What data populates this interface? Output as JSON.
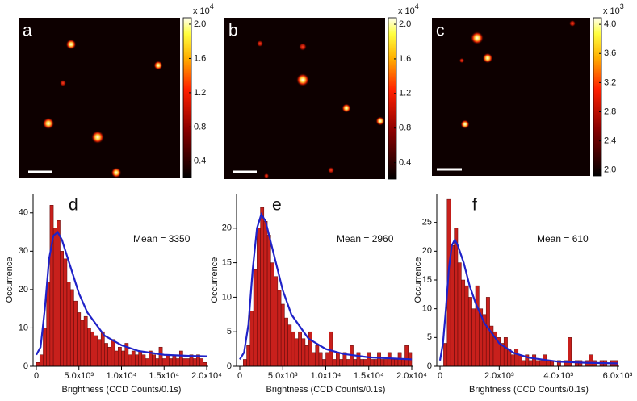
{
  "images": [
    {
      "label": "a",
      "colorbar": {
        "multiplier": "x 10",
        "exponent": "4",
        "range": [
          0.21,
          2.075
        ],
        "ticks": [
          0.4,
          0.8,
          1.2,
          1.6,
          {
            "value": 2,
            "label": "2.0"
          }
        ]
      }
    },
    {
      "label": "b",
      "colorbar": {
        "multiplier": "x 10",
        "exponent": "4",
        "range": [
          0.21,
          2.075
        ],
        "ticks": [
          0.4,
          0.8,
          1.2,
          1.6,
          {
            "value": 2,
            "label": "2.0"
          }
        ]
      }
    },
    {
      "label": "c",
      "colorbar": {
        "multiplier": "x 10",
        "exponent": "3",
        "range": [
          1.92,
          4.09
        ],
        "ticks": [
          {
            "value": 2,
            "label": "2.0"
          },
          2.4,
          2.8,
          3.2,
          3.6,
          {
            "value": 4,
            "label": "4.0"
          }
        ]
      }
    }
  ],
  "chart_data": [
    {
      "type": "histogram",
      "label": "d",
      "annotation": "Mean = 3350",
      "x_label": "Brightness (CCD Counts/0.1s)",
      "y_label": "Occurrence",
      "color": "#c8201c",
      "bins": [
        0,
        400,
        800,
        1200,
        1600,
        2000,
        2400,
        2800,
        3200,
        3600,
        4000,
        4400,
        4800,
        5200,
        5600,
        6000,
        6400,
        6800,
        7200,
        7600,
        8000,
        8400,
        8800,
        9200,
        9600,
        10000,
        10400,
        10800,
        11200,
        11600,
        12000,
        12400,
        12800,
        13200,
        13600,
        14000,
        14400,
        14800,
        15200,
        15600,
        16000,
        16400,
        16800,
        17200,
        17600,
        18000,
        18400,
        18800,
        19200,
        19600,
        20000
      ],
      "values": [
        1,
        3,
        10,
        22,
        42,
        36,
        38,
        30,
        28,
        22,
        20,
        17,
        14,
        12,
        13,
        10,
        9,
        8,
        7,
        9,
        6,
        5,
        7,
        4,
        5,
        4,
        6,
        3,
        4,
        3,
        4,
        3,
        2,
        4,
        3,
        2,
        5,
        2,
        3,
        2,
        3,
        2,
        4,
        2,
        2,
        3,
        2,
        3,
        2,
        1
      ],
      "fit": {
        "color": "#1f22c8",
        "x": [
          0,
          500,
          1000,
          1500,
          2000,
          2500,
          3000,
          4000,
          5000,
          6000,
          8000,
          10000,
          12000,
          15000,
          18000,
          20000
        ],
        "values": [
          3,
          5,
          15,
          28,
          34,
          35,
          33,
          26,
          19,
          14,
          8,
          5.5,
          4,
          3,
          2.7,
          2.6
        ]
      },
      "xlim": [
        0,
        20000
      ],
      "ylim": [
        0,
        45
      ],
      "xticks": [
        0,
        {
          "value": 5000,
          "label": "5.0x10³"
        },
        {
          "value": 10000,
          "label": "1.0x10⁴"
        },
        {
          "value": 15000,
          "label": "1.5x10⁴"
        },
        {
          "value": 20000,
          "label": "2.0x10⁴"
        }
      ],
      "yticks": [
        0,
        10,
        20,
        30,
        40
      ]
    },
    {
      "type": "histogram",
      "label": "e",
      "annotation": "Mean = 2960",
      "x_label": "Brightness (CCD Counts/0.1s)",
      "y_label": "Occurrence",
      "color": "#c8201c",
      "bins": [
        0,
        400,
        800,
        1200,
        1600,
        2000,
        2400,
        2800,
        3200,
        3600,
        4000,
        4400,
        4800,
        5200,
        5600,
        6000,
        6400,
        6800,
        7200,
        7600,
        8000,
        8400,
        8800,
        9200,
        9600,
        10000,
        10400,
        10800,
        11200,
        11600,
        12000,
        12400,
        12800,
        13200,
        13600,
        14000,
        14400,
        14800,
        15200,
        15600,
        16000,
        16400,
        16800,
        17200,
        17600,
        18000,
        18400,
        18800,
        19200,
        19600,
        20000
      ],
      "values": [
        0,
        1,
        3,
        8,
        14,
        20,
        23,
        21,
        19,
        15,
        13,
        11,
        9,
        7,
        6,
        5,
        4,
        5,
        4,
        3,
        5,
        2,
        3,
        2,
        1,
        2,
        5,
        1,
        2,
        1,
        2,
        1,
        3,
        1,
        2,
        1,
        1,
        2,
        1,
        1,
        2,
        1,
        1,
        2,
        1,
        1,
        2,
        1,
        3,
        2
      ],
      "fit": {
        "color": "#1f22c8",
        "x": [
          0,
          500,
          1000,
          1500,
          2000,
          2500,
          3000,
          4000,
          5000,
          6000,
          8000,
          10000,
          12000,
          15000,
          20000
        ],
        "values": [
          1,
          2,
          6,
          14,
          20,
          22,
          21,
          16,
          11,
          7.5,
          4,
          2.5,
          1.8,
          1.3,
          1
        ]
      },
      "xlim": [
        0,
        20000
      ],
      "ylim": [
        0,
        25
      ],
      "xticks": [
        0,
        {
          "value": 5000,
          "label": "5.0x10³"
        },
        {
          "value": 10000,
          "label": "1.0x10⁴"
        },
        {
          "value": 15000,
          "label": "1.5x10⁴"
        },
        {
          "value": 20000,
          "label": "2.0x10⁴"
        }
      ],
      "yticks": [
        0,
        5,
        10,
        15,
        20
      ]
    },
    {
      "type": "histogram",
      "label": "f",
      "annotation": "Mean = 610",
      "x_label": "Brightness (CCD Counts/0.1s)",
      "y_label": "Occurrence",
      "color": "#c8201c",
      "bins": [
        0,
        120,
        240,
        360,
        480,
        600,
        720,
        840,
        960,
        1080,
        1200,
        1320,
        1440,
        1560,
        1680,
        1800,
        1920,
        2040,
        2160,
        2280,
        2400,
        2520,
        2640,
        2760,
        2880,
        3000,
        3120,
        3240,
        3360,
        3480,
        3600,
        3720,
        3840,
        3960,
        4080,
        4200,
        4320,
        4440,
        4560,
        4680,
        4800,
        4920,
        5040,
        5160,
        5280,
        5400,
        5520,
        5640,
        5760,
        5880,
        6000
      ],
      "values": [
        0,
        4,
        29,
        21,
        24,
        18,
        15,
        14,
        12,
        10,
        14,
        10,
        9,
        12,
        7,
        6,
        5,
        4,
        5,
        3,
        2,
        3,
        2,
        1,
        2,
        1,
        2,
        1,
        1,
        2,
        1,
        1,
        0,
        1,
        0,
        1,
        5,
        0,
        1,
        1,
        0,
        1,
        2,
        1,
        0,
        1,
        1,
        0,
        1,
        1
      ],
      "fit": {
        "color": "#1f22c8",
        "x": [
          0,
          100,
          200,
          300,
          400,
          500,
          600,
          800,
          1000,
          1200,
          1500,
          2000,
          2500,
          3000,
          4000,
          5000,
          6000
        ],
        "values": [
          1,
          4,
          10,
          17,
          21,
          22,
          21,
          18,
          14,
          11,
          7.5,
          4,
          2.3,
          1.5,
          0.8,
          0.6,
          0.5
        ]
      },
      "xlim": [
        0,
        6000
      ],
      "ylim": [
        0,
        30
      ],
      "xticks": [
        0,
        {
          "value": 2000,
          "label": "2.0x10³"
        },
        {
          "value": 4000,
          "label": "4.0x10³"
        },
        {
          "value": 6000,
          "label": "6.0x10³"
        }
      ],
      "yticks": [
        0,
        5,
        10,
        15,
        20,
        25
      ]
    }
  ]
}
